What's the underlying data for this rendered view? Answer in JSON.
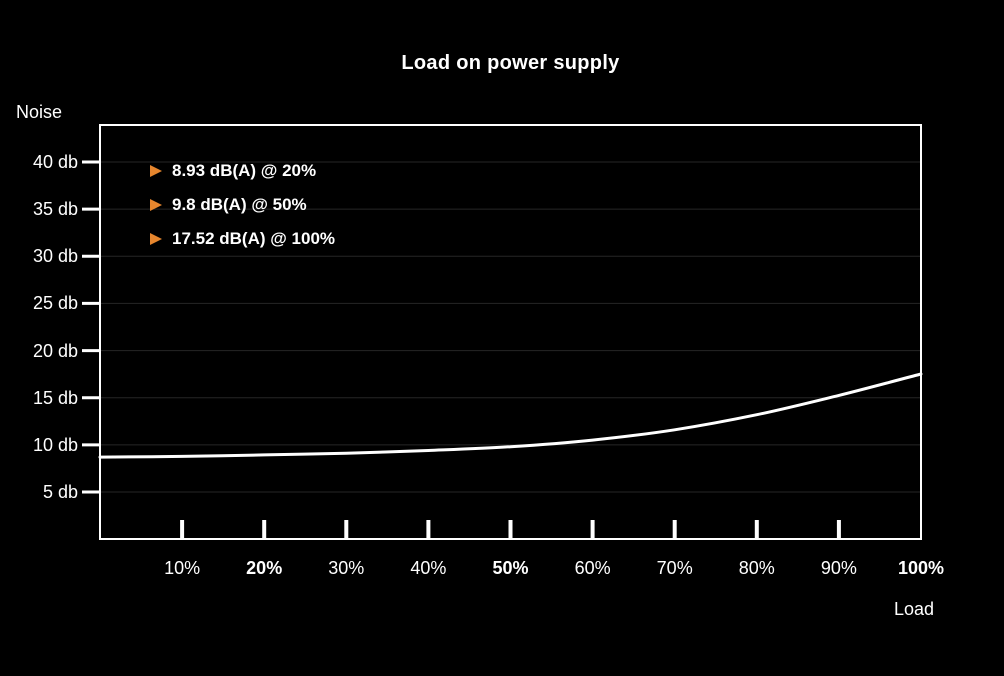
{
  "title": "Load on power supply",
  "axis": {
    "y_title": "Noise",
    "x_title": "Load"
  },
  "legend_items": [
    "8.93 dB(A) @ 20%",
    "9.8 dB(A) @ 50%",
    "17.52 dB(A) @ 100%"
  ],
  "colors": {
    "background": "#000000",
    "line": "#ffffff",
    "grid": "#262626",
    "accent_orange": "#e6862e",
    "text": "#ffffff"
  },
  "chart_data": {
    "type": "line",
    "title": "Load on power supply",
    "xlabel": "Load",
    "ylabel": "Noise",
    "x": [
      0,
      10,
      20,
      30,
      40,
      50,
      60,
      70,
      80,
      90,
      100
    ],
    "y": [
      8.7,
      8.78,
      8.93,
      9.12,
      9.4,
      9.8,
      10.5,
      11.6,
      13.2,
      15.25,
      17.52
    ],
    "highlighted_points": [
      {
        "x": 20,
        "y": 8.93,
        "label": "8.93 dB(A) @ 20%"
      },
      {
        "x": 50,
        "y": 9.8,
        "label": "9.8 dB(A) @ 50%"
      },
      {
        "x": 100,
        "y": 17.52,
        "label": "17.52 dB(A) @ 100%"
      }
    ],
    "x_ticks": [
      {
        "pct": 10,
        "label": "10%",
        "bold": false,
        "tick": true
      },
      {
        "pct": 20,
        "label": "20%",
        "bold": true,
        "tick": true
      },
      {
        "pct": 30,
        "label": "30%",
        "bold": false,
        "tick": true
      },
      {
        "pct": 40,
        "label": "40%",
        "bold": false,
        "tick": true
      },
      {
        "pct": 50,
        "label": "50%",
        "bold": true,
        "tick": true
      },
      {
        "pct": 60,
        "label": "60%",
        "bold": false,
        "tick": true
      },
      {
        "pct": 70,
        "label": "70%",
        "bold": false,
        "tick": true
      },
      {
        "pct": 80,
        "label": "80%",
        "bold": false,
        "tick": true
      },
      {
        "pct": 90,
        "label": "90%",
        "bold": false,
        "tick": true
      },
      {
        "pct": 100,
        "label": "100%",
        "bold": true,
        "tick": false
      }
    ],
    "y_ticks": [
      {
        "value": 40,
        "label": "40 db"
      },
      {
        "value": 35,
        "label": "35 db"
      },
      {
        "value": 30,
        "label": "30 db"
      },
      {
        "value": 25,
        "label": "25 db"
      },
      {
        "value": 20,
        "label": "20 db"
      },
      {
        "value": 15,
        "label": "15 db"
      },
      {
        "value": 10,
        "label": "10 db"
      },
      {
        "value": 5,
        "label": "5 db"
      }
    ],
    "xlim": [
      0,
      100
    ],
    "ylim": [
      0,
      44
    ],
    "grid": true,
    "legend_position": "top-left-inside",
    "annotations": [
      "8.93 dB(A) @ 20%",
      "9.8 dB(A) @ 50%",
      "17.52 dB(A) @ 100%"
    ]
  }
}
